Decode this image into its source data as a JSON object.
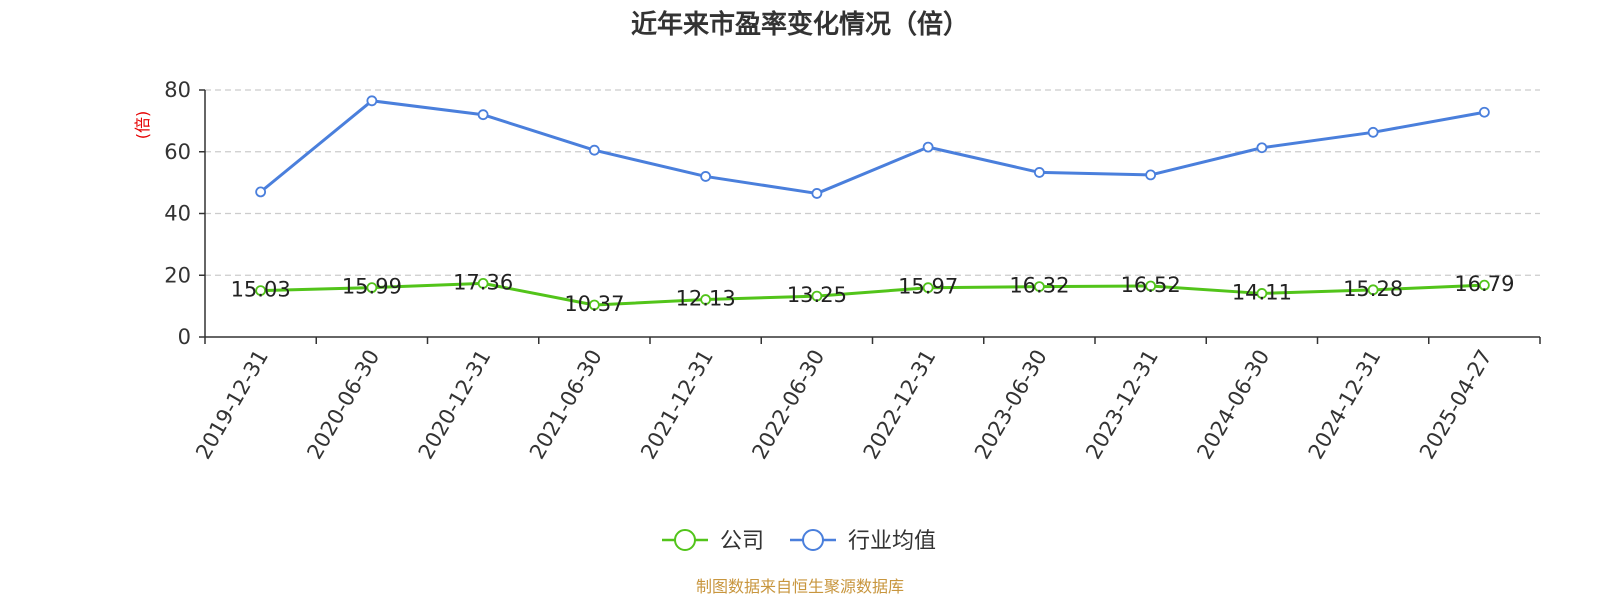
{
  "chart_data": {
    "type": "line",
    "title": "近年来市盈率变化情况（倍）",
    "ylabel": "(倍)",
    "xlabel": "",
    "ylim": [
      0,
      80
    ],
    "yticks": [
      0,
      20,
      40,
      60,
      80
    ],
    "grid": true,
    "legend_position": "bottom-center",
    "categories": [
      "2019-12-31",
      "2020-06-30",
      "2020-12-31",
      "2021-06-30",
      "2021-12-31",
      "2022-06-30",
      "2022-12-31",
      "2023-06-30",
      "2023-12-31",
      "2024-06-30",
      "2024-12-31",
      "2025-04-27"
    ],
    "series": [
      {
        "name": "公司",
        "color": "#52c41a",
        "values": [
          15.03,
          15.99,
          17.36,
          10.37,
          12.13,
          13.25,
          15.97,
          16.32,
          16.52,
          14.11,
          15.28,
          16.79
        ],
        "labels": [
          "15.03",
          "15.99",
          "17.36",
          "10.37",
          "12.13",
          "13.25",
          "15.97",
          "16.32",
          "16.52",
          "14.11",
          "15.28",
          "16.79"
        ],
        "show_labels": true
      },
      {
        "name": "行业均值",
        "color": "#4a7fdc",
        "values": [
          47.0,
          76.5,
          72.0,
          60.5,
          52.0,
          46.5,
          61.5,
          53.3,
          52.5,
          61.3,
          66.3,
          72.8
        ],
        "show_labels": false
      }
    ],
    "source": "制图数据来自恒生聚源数据库"
  },
  "colors": {
    "axis": "#333333",
    "grid": "#cccccc",
    "ylabel": "#e60000",
    "source": "#c8963e"
  }
}
